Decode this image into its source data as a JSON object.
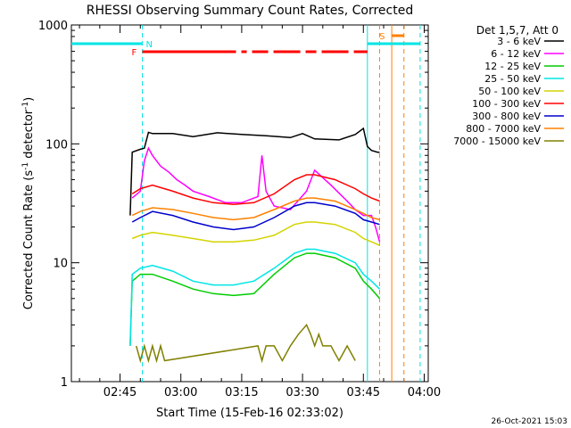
{
  "chart_data": {
    "type": "line",
    "title": "RHESSI Observing Summary Count Rates, Corrected",
    "xlabel": "Start Time (15-Feb-16 02:33:02)",
    "ylabel": "Corrected Count Rate (s",
    "ylabel_sup1": "-1",
    "ylabel_mid": " detector",
    "ylabel_sup2": "-1",
    "ylabel_end": ")",
    "timestamp": "26-Oct-2021 15:03",
    "yscale": "log",
    "ylim": [
      1,
      1000
    ],
    "xlim_minutes": [
      0,
      88
    ],
    "x_ticks": [
      {
        "label": "02:45",
        "minute": 12
      },
      {
        "label": "03:00",
        "minute": 27
      },
      {
        "label": "03:15",
        "minute": 42
      },
      {
        "label": "03:30",
        "minute": 57
      },
      {
        "label": "03:45",
        "minute": 72
      },
      {
        "label": "04:00",
        "minute": 87
      }
    ],
    "y_ticks": [
      {
        "label": "1",
        "value": 1
      },
      {
        "label": "10",
        "value": 10
      },
      {
        "label": "100",
        "value": 100
      },
      {
        "label": "1000",
        "value": 1000
      }
    ],
    "legend_header": "Det 1,5,7, Att 0",
    "legend_position": "right",
    "series": [
      {
        "name": "3 - 6 keV",
        "color": "#000000",
        "x_minutes": [
          14.5,
          15,
          17,
          18,
          19,
          20,
          25,
          30,
          36,
          42,
          48,
          54,
          57,
          60,
          66,
          70,
          72,
          73,
          74,
          75.5,
          76
        ],
        "y": [
          25,
          85,
          90,
          92,
          125,
          122,
          122,
          115,
          124,
          120,
          117,
          113,
          122,
          110,
          108,
          120,
          135,
          95,
          88,
          85,
          85
        ]
      },
      {
        "name": "6 - 12 keV",
        "color": "#ff00ff",
        "x_minutes": [
          15,
          17,
          18,
          19,
          20,
          22,
          24,
          26,
          28,
          30,
          34,
          38,
          42,
          46,
          47,
          48,
          50,
          54,
          58,
          60,
          64,
          68,
          70,
          72,
          74,
          75,
          76
        ],
        "y": [
          35,
          40,
          72,
          92,
          80,
          65,
          58,
          50,
          45,
          40,
          36,
          32,
          32,
          36,
          80,
          40,
          30,
          28,
          40,
          60,
          45,
          33,
          28,
          25,
          25,
          20,
          15
        ]
      },
      {
        "name": "12 - 25 keV",
        "color": "#00cc00",
        "x_minutes": [
          14.5,
          15,
          17,
          20,
          25,
          30,
          35,
          40,
          45,
          50,
          55,
          58,
          60,
          65,
          70,
          72,
          74,
          76
        ],
        "y": [
          2,
          7,
          8,
          8,
          7,
          6,
          5.5,
          5.3,
          5.5,
          8,
          11,
          12,
          12,
          11,
          9,
          7,
          6,
          5
        ]
      },
      {
        "name": "25 - 50 keV",
        "color": "#00e5e5",
        "x_minutes": [
          14.5,
          15,
          17,
          20,
          25,
          30,
          35,
          40,
          45,
          50,
          55,
          58,
          60,
          65,
          70,
          72,
          74,
          76
        ],
        "y": [
          2,
          8,
          9,
          9.5,
          8.5,
          7,
          6.5,
          6.5,
          7,
          9,
          12,
          13,
          13,
          12,
          10,
          8,
          7,
          6
        ]
      },
      {
        "name": "50 - 100 keV",
        "color": "#d4d400",
        "x_minutes": [
          15,
          17,
          20,
          25,
          30,
          35,
          40,
          45,
          50,
          55,
          58,
          60,
          65,
          70,
          72,
          74,
          76
        ],
        "y": [
          16,
          17,
          18,
          17,
          16,
          15,
          15,
          15.5,
          17,
          21,
          22,
          22,
          21,
          18,
          16,
          15,
          14
        ]
      },
      {
        "name": "100 - 300 keV",
        "color": "#ff0000",
        "x_minutes": [
          15,
          17,
          20,
          25,
          30,
          35,
          40,
          45,
          50,
          55,
          58,
          60,
          65,
          70,
          72,
          74,
          76
        ],
        "y": [
          38,
          42,
          45,
          40,
          35,
          32,
          31,
          32,
          38,
          50,
          55,
          55,
          50,
          42,
          38,
          35,
          33
        ]
      },
      {
        "name": "300 - 800 keV",
        "color": "#0000cc",
        "x_minutes": [
          15,
          17,
          20,
          25,
          30,
          35,
          40,
          45,
          50,
          55,
          58,
          60,
          65,
          70,
          72,
          74,
          76
        ],
        "y": [
          22,
          24,
          27,
          25,
          22,
          20,
          19,
          20,
          24,
          30,
          32,
          32,
          30,
          26,
          23,
          22,
          21
        ]
      },
      {
        "name": "800 - 7000 keV",
        "color": "#ff8000",
        "x_minutes": [
          15,
          17,
          20,
          25,
          30,
          35,
          40,
          45,
          50,
          55,
          58,
          60,
          65,
          70,
          72,
          74,
          76
        ],
        "y": [
          25,
          27,
          29,
          28,
          26,
          24,
          23,
          24,
          28,
          33,
          35,
          35,
          33,
          28,
          26,
          24,
          23
        ]
      },
      {
        "name": "7000 - 15000 keV",
        "color": "#808000",
        "x_minutes": [
          16,
          17,
          18,
          19,
          20,
          21,
          22,
          23,
          46,
          47,
          48,
          50,
          52,
          54,
          56,
          58,
          59,
          60,
          61,
          62,
          64,
          66,
          68,
          70
        ],
        "y": [
          2,
          1.5,
          2,
          1.5,
          2,
          1.5,
          2,
          1.5,
          2,
          1.5,
          2,
          2,
          1.5,
          2,
          2.5,
          3,
          2.5,
          2,
          2.5,
          2,
          2,
          1.5,
          2,
          1.5
        ]
      }
    ],
    "flags": [
      {
        "label": "N",
        "color": "#00e5e5",
        "x_minutes": [
          0,
          17.5,
          73,
          86
        ]
      },
      {
        "label": "F",
        "color": "#ff0000",
        "x_minutes": [
          17.5,
          73
        ]
      },
      {
        "label": "S",
        "color": "#ff8000",
        "x_minutes": [
          79,
          82
        ]
      }
    ],
    "vertical_markers": [
      {
        "color": "#00e5e5",
        "style": "dashed",
        "minute": 17.5
      },
      {
        "color": "#00e5e5",
        "style": "solid",
        "minute": 73
      },
      {
        "color": "#00e5e5",
        "style": "dashed",
        "minute": 86
      },
      {
        "color": "#ff8000",
        "style": "dashed",
        "minute": 76
      },
      {
        "color": "#ff8000",
        "style": "solid",
        "minute": 79
      },
      {
        "color": "#ff8000",
        "style": "dashed",
        "minute": 82
      }
    ]
  }
}
